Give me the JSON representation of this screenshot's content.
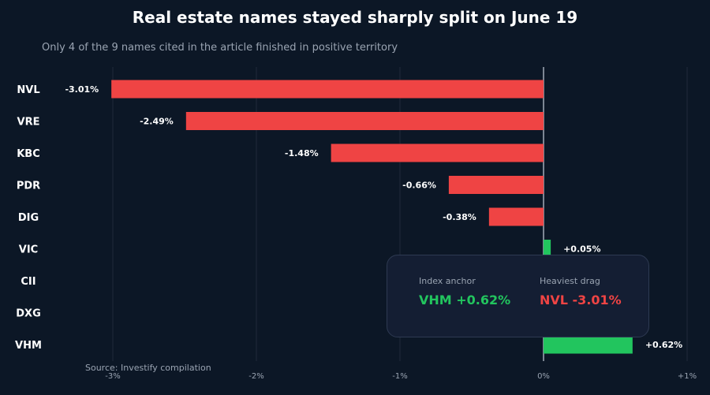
{
  "title": "Real estate names stayed sharply split on June 19",
  "subtitle": "Only 4 of the 9 names cited in the article finished in positive territory",
  "source": "Source: Investify compilation",
  "colors": {
    "background": "#0c1726",
    "negative": "#ef4444",
    "positive": "#22c55e",
    "grid": "#1f2a3a",
    "zero_line": "#c9d1dc"
  },
  "callout": {
    "left_label": "Index anchor",
    "left_value": "VHM +0.62%",
    "right_label": "Heaviest drag",
    "right_value": "NVL -3.01%"
  },
  "chart_data": {
    "type": "bar",
    "orientation": "horizontal",
    "categories": [
      "NVL",
      "VRE",
      "KBC",
      "PDR",
      "DIG",
      "VIC",
      "CII",
      "DXG",
      "VHM"
    ],
    "values": [
      -3.01,
      -2.49,
      -1.48,
      -0.66,
      -0.38,
      0.05,
      null,
      null,
      0.62
    ],
    "data_labels": [
      "-3.01%",
      "-2.49%",
      "-1.48%",
      "-0.66%",
      "-0.38%",
      "+0.05%",
      "",
      "",
      "+0.62%"
    ],
    "xlim": [
      -3,
      1
    ],
    "xticks": [
      -3,
      -2,
      -1,
      0,
      1
    ],
    "xtick_labels": [
      "-3%",
      "-2%",
      "-1%",
      "0%",
      "+1%"
    ],
    "grid": true,
    "legend": "none"
  }
}
